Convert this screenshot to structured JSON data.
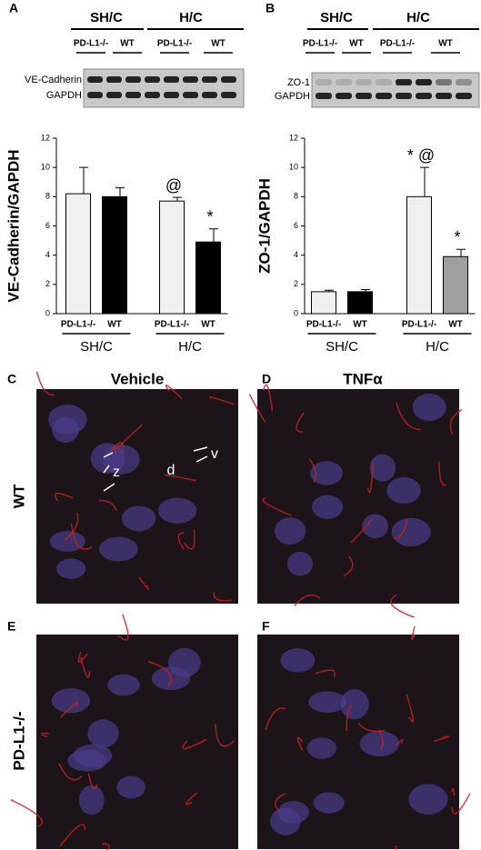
{
  "panel_labels": [
    "A",
    "B",
    "C",
    "D",
    "E",
    "F"
  ],
  "blots": [
    {
      "header": [
        "SH/C",
        "H/C"
      ],
      "lanes": [
        "PD-L1-/-",
        "WT",
        "PD-L1-/-",
        "WT"
      ],
      "rows": [
        "VE-Cadherin",
        "GAPDH"
      ]
    },
    {
      "header": [
        "SH/C",
        "H/C"
      ],
      "lanes": [
        "PD-L1-/-",
        "WT",
        "PD-L1-/-",
        "WT"
      ],
      "rows": [
        "ZO-1",
        "GAPDH"
      ]
    }
  ],
  "chart_data": [
    {
      "type": "bar",
      "ylabel": "VE-Cadherin/GAPDH",
      "categories": [
        "PD-L1-/-",
        "WT",
        "PD-L1-/-",
        "WT"
      ],
      "groups": [
        "SH/C",
        "H/C"
      ],
      "values": [
        8.2,
        8.0,
        7.7,
        4.9
      ],
      "errors": [
        1.8,
        0.6,
        0.25,
        0.9
      ],
      "colors": [
        "#f0f0f0",
        "#000000",
        "#f0f0f0",
        "#000000"
      ],
      "annotations": [
        null,
        null,
        "@",
        "*"
      ],
      "ylim": [
        0,
        12
      ],
      "yticks": [
        0,
        2,
        4,
        6,
        8,
        10,
        12
      ]
    },
    {
      "type": "bar",
      "ylabel": "ZO-1/GAPDH",
      "categories": [
        "PD-L1-/-",
        "WT",
        "PD-L1-/-",
        "WT"
      ],
      "groups": [
        "SH/C",
        "H/C"
      ],
      "values": [
        1.5,
        1.5,
        8.0,
        3.9
      ],
      "errors": [
        0.1,
        0.15,
        2.0,
        0.5
      ],
      "colors": [
        "#f0f0f0",
        "#000000",
        "#f0f0f0",
        "#a0a0a0"
      ],
      "annotations": [
        null,
        null,
        "* @",
        "*"
      ],
      "ylim": [
        0,
        12
      ],
      "yticks": [
        0,
        2,
        4,
        6,
        8,
        10,
        12
      ]
    }
  ],
  "micrographs": {
    "columns": [
      "Vehicle",
      "TNFα"
    ],
    "rows": [
      "WT",
      "PD-L1-/-"
    ],
    "annotations": [
      "z",
      "d",
      "v"
    ]
  }
}
